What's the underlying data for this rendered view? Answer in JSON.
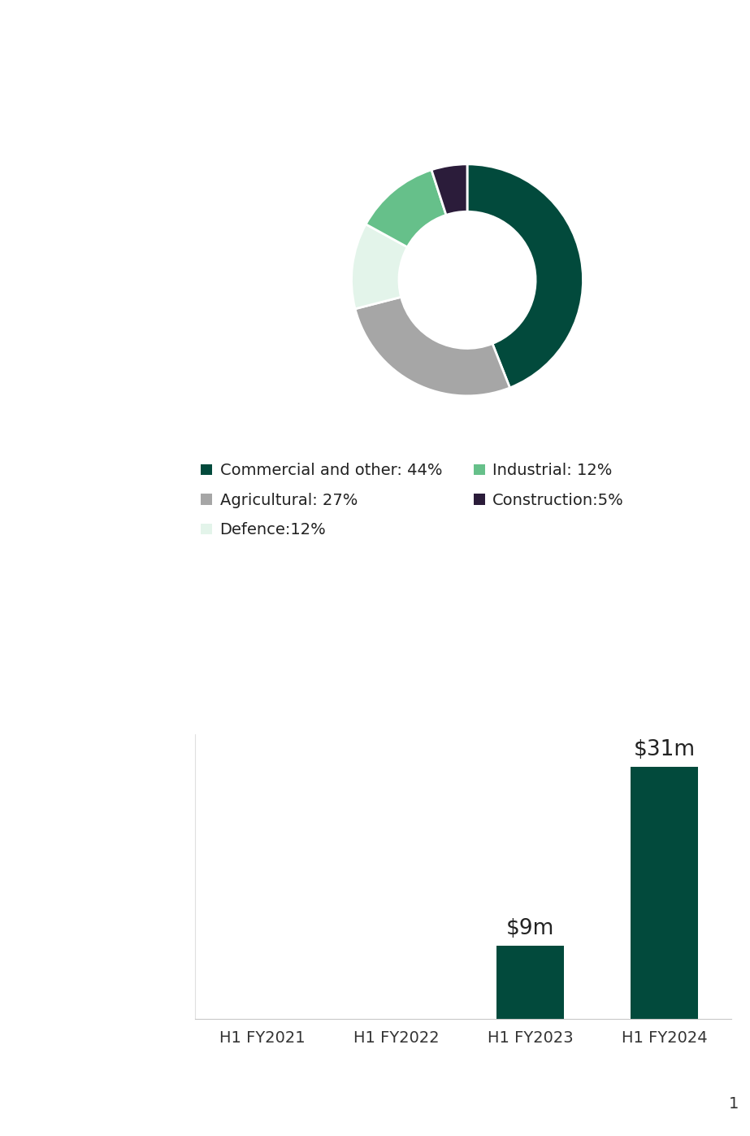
{
  "chart_data": [
    {
      "type": "pie",
      "categories": [
        "Commercial and other: 44%",
        "Agricultural: 27%",
        "Defence:12%",
        "Industrial: 12%",
        "Construction:5%"
      ],
      "values": [
        44,
        27,
        12,
        12,
        5
      ],
      "colors": [
        "#024a3c",
        "#a6a6a6",
        "#e3f4ea",
        "#66c08a",
        "#2b1c3a"
      ],
      "legend": "upper center"
    },
    {
      "type": "bar",
      "categories": [
        "H1 FY2021",
        "H1 FY2022",
        "H1 FY2023",
        "H1 FY2024"
      ],
      "values": [
        null,
        null,
        9,
        31
      ],
      "value_labels": [
        null,
        null,
        "$9m",
        "$31m"
      ],
      "color": "#024a3c",
      "ylim": [
        0,
        35
      ],
      "data_labels": true,
      "tick_labels": "x"
    }
  ],
  "page_number": "1"
}
